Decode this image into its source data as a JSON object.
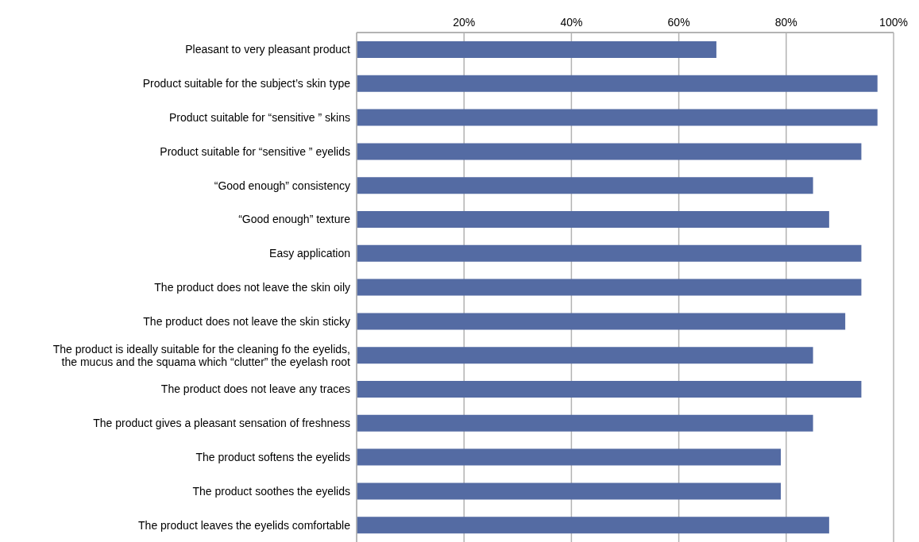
{
  "chart_data": {
    "type": "bar",
    "orientation": "horizontal",
    "categories": [
      "Pleasant to very pleasant product",
      "Product suitable for the subject’s skin type",
      "Product suitable for “sensitive ” skins",
      "Product suitable for “sensitive ” eyelids",
      "“Good enough” consistency",
      "“Good enough” texture",
      "Easy application",
      "The product does not leave the skin oily",
      "The product does not leave the skin sticky",
      "The product is ideally suitable for the cleaning fo the eyelids, the mucus and the squama which “clutter”  the eyelash root",
      "The product does not leave any traces",
      "The product gives a pleasant sensation of freshness",
      "The product softens the eyelids",
      "The product soothes the eyelids",
      "The product leaves the eyelids comfortable"
    ],
    "values": [
      67,
      97,
      97,
      94,
      85,
      88,
      94,
      94,
      91,
      85,
      94,
      85,
      79,
      79,
      88
    ],
    "color": "#546ba3",
    "xlim": [
      0,
      100
    ],
    "xticks": [
      {
        "value": 0,
        "label": null
      },
      {
        "value": 20,
        "label": "20%"
      },
      {
        "value": 40,
        "label": "40%"
      },
      {
        "value": 60,
        "label": "60%"
      },
      {
        "value": 80,
        "label": "80%"
      },
      {
        "value": 100,
        "label": "100%"
      }
    ],
    "grid": "x"
  }
}
